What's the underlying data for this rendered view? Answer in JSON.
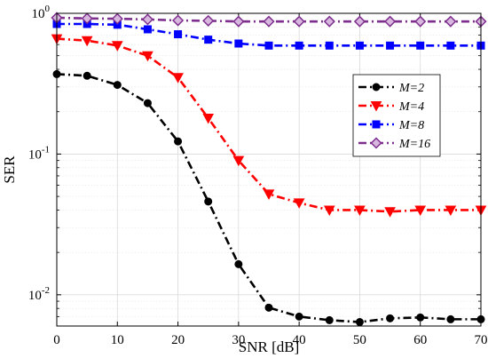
{
  "chart_data": {
    "type": "line",
    "xlabel": "SNR [dB]",
    "ylabel": "SER",
    "xlim": [
      0,
      70
    ],
    "ylim": [
      0.006,
      1
    ],
    "yscale": "log",
    "grid": true,
    "legend_position": "right",
    "x_ticks": [
      "0",
      "10",
      "20",
      "30",
      "40",
      "50",
      "60",
      "70"
    ],
    "y_ticks": [
      {
        "value": 0.01,
        "base": "10",
        "exp": "-2"
      },
      {
        "value": 0.1,
        "base": "10",
        "exp": "-1"
      },
      {
        "value": 1,
        "base": "10",
        "exp": "0"
      }
    ],
    "x": [
      0,
      5,
      10,
      15,
      20,
      25,
      30,
      35,
      40,
      45,
      50,
      55,
      60,
      65,
      70
    ],
    "series": [
      {
        "name": "M=2",
        "color": "#000000",
        "marker": "circle",
        "values": [
          0.37,
          0.36,
          0.31,
          0.23,
          0.123,
          0.046,
          0.0165,
          0.0081,
          0.007,
          0.0066,
          0.0064,
          0.0068,
          0.0069,
          0.0067,
          0.0067
        ]
      },
      {
        "name": "M=4",
        "color": "#ff0000",
        "marker": "triangle-down",
        "values": [
          0.66,
          0.64,
          0.59,
          0.5,
          0.35,
          0.18,
          0.09,
          0.052,
          0.045,
          0.04,
          0.04,
          0.039,
          0.04,
          0.04,
          0.04
        ]
      },
      {
        "name": "M=8",
        "color": "#0000ff",
        "marker": "square",
        "values": [
          0.84,
          0.84,
          0.83,
          0.77,
          0.71,
          0.65,
          0.61,
          0.59,
          0.59,
          0.59,
          0.59,
          0.59,
          0.59,
          0.59,
          0.59
        ]
      },
      {
        "name": "M=16",
        "color": "#7e2f8e",
        "marker": "diamond",
        "values": [
          0.93,
          0.92,
          0.915,
          0.905,
          0.89,
          0.885,
          0.875,
          0.875,
          0.875,
          0.875,
          0.875,
          0.875,
          0.875,
          0.875,
          0.875
        ]
      }
    ]
  }
}
